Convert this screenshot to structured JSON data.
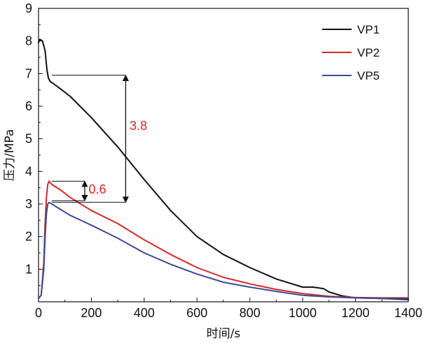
{
  "chart_data": {
    "type": "line",
    "title": "",
    "xlabel": "时间/s",
    "ylabel": "压力/MPa",
    "xlim": [
      0,
      1400
    ],
    "ylim": [
      0,
      9
    ],
    "xticks": [
      0,
      200,
      400,
      600,
      800,
      1000,
      1200,
      1400
    ],
    "yticks": [
      1,
      2,
      3,
      4,
      5,
      6,
      7,
      8,
      9
    ],
    "xtick_labels": [
      "0",
      "200",
      "400",
      "600",
      "800",
      "1000",
      "1200",
      "1400"
    ],
    "ytick_labels": [
      "1",
      "2",
      "3",
      "4",
      "5",
      "6",
      "7",
      "8",
      "9"
    ],
    "grid": false,
    "legend_position": "top-right",
    "series": [
      {
        "name": "VP1",
        "color": "#111111",
        "x": [
          0,
          5,
          15,
          25,
          32,
          38,
          45,
          55,
          80,
          120,
          200,
          300,
          400,
          500,
          600,
          700,
          800,
          900,
          1000,
          1040,
          1080,
          1100,
          1150,
          1200,
          1300,
          1400
        ],
        "y": [
          7.95,
          8.05,
          8.0,
          7.7,
          7.1,
          6.85,
          6.75,
          6.7,
          6.55,
          6.3,
          5.65,
          4.75,
          3.75,
          2.8,
          2.0,
          1.45,
          1.05,
          0.7,
          0.45,
          0.45,
          0.4,
          0.3,
          0.18,
          0.12,
          0.1,
          0.07
        ]
      },
      {
        "name": "VP2",
        "color": "#d62728",
        "x": [
          0,
          10,
          20,
          25,
          30,
          35,
          40,
          50,
          80,
          120,
          200,
          300,
          400,
          500,
          600,
          700,
          800,
          900,
          1000,
          1100,
          1200,
          1300,
          1400
        ],
        "y": [
          0.1,
          0.2,
          1.2,
          2.4,
          3.2,
          3.6,
          3.7,
          3.6,
          3.45,
          3.2,
          2.8,
          2.4,
          1.9,
          1.45,
          1.05,
          0.75,
          0.55,
          0.38,
          0.25,
          0.17,
          0.13,
          0.12,
          0.12
        ]
      },
      {
        "name": "VP5",
        "color": "#3a4a99",
        "x": [
          0,
          10,
          20,
          25,
          30,
          35,
          40,
          50,
          80,
          120,
          200,
          300,
          400,
          500,
          600,
          700,
          800,
          900,
          1000,
          1100,
          1200,
          1300,
          1400
        ],
        "y": [
          0.1,
          0.2,
          1.0,
          2.0,
          2.7,
          3.0,
          3.05,
          3.0,
          2.85,
          2.65,
          2.35,
          1.95,
          1.5,
          1.15,
          0.85,
          0.6,
          0.45,
          0.32,
          0.2,
          0.15,
          0.12,
          0.1,
          0.1
        ]
      }
    ],
    "annotations": [
      {
        "label": "3.8",
        "color": "#d62728",
        "from_y": 6.95,
        "to_y": 3.05,
        "line_x_start": 50,
        "line_x_end": 330,
        "arrow_x": 330,
        "label_x": 345,
        "label_y": 5.4
      },
      {
        "label": "0.6",
        "color": "#d62728",
        "from_y": 3.7,
        "to_y": 3.1,
        "line_x_start": 50,
        "line_x_end": 175,
        "arrow_x": 175,
        "label_x": 190,
        "label_y": 3.45
      }
    ]
  }
}
